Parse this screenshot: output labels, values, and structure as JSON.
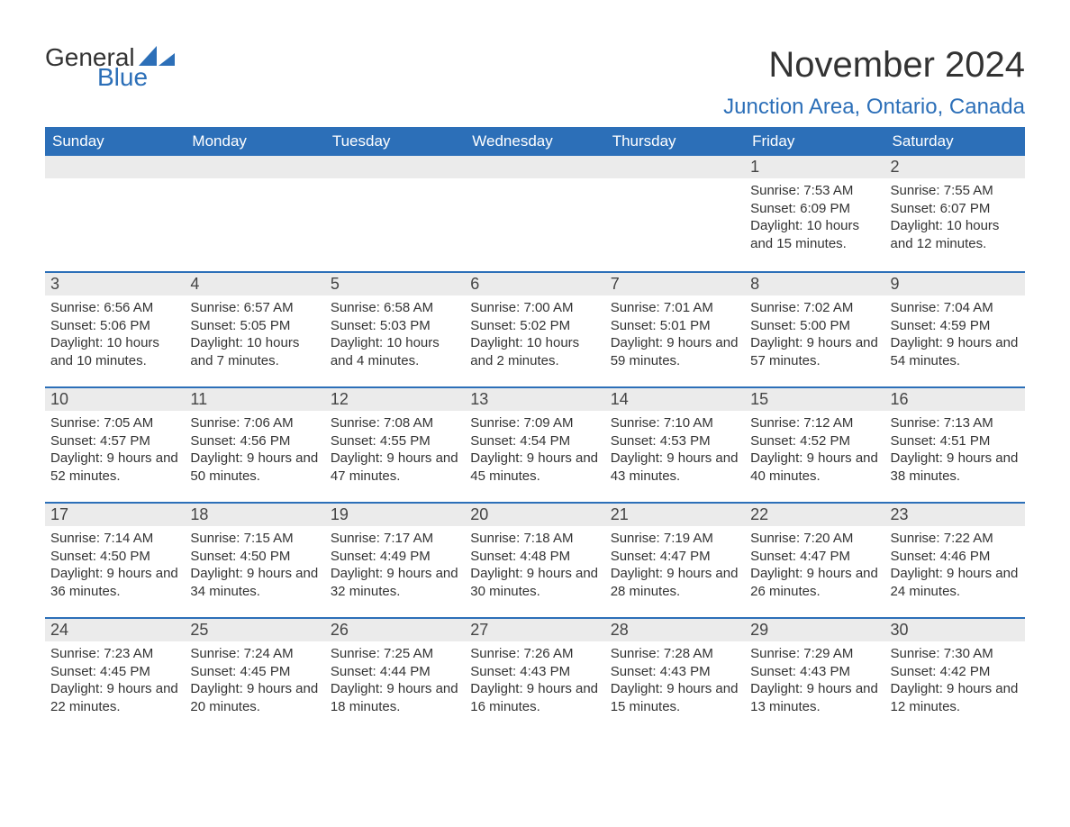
{
  "logo": {
    "text1": "General",
    "text2": "Blue"
  },
  "title": "November 2024",
  "location": "Junction Area, Ontario, Canada",
  "colors": {
    "header_bg": "#2c6fb8",
    "header_text": "#ffffff",
    "daynum_bg": "#ebebeb",
    "row_border": "#2c6fb8",
    "body_text": "#333333",
    "page_bg": "#ffffff"
  },
  "typography": {
    "month_title_fontsize": 40,
    "location_fontsize": 24,
    "weekday_header_fontsize": 17,
    "daynum_fontsize": 18,
    "body_fontsize": 15
  },
  "weekdays": [
    "Sunday",
    "Monday",
    "Tuesday",
    "Wednesday",
    "Thursday",
    "Friday",
    "Saturday"
  ],
  "weeks": [
    [
      null,
      null,
      null,
      null,
      null,
      {
        "day": "1",
        "sunrise": "7:53 AM",
        "sunset": "6:09 PM",
        "daylight": "10 hours and 15 minutes."
      },
      {
        "day": "2",
        "sunrise": "7:55 AM",
        "sunset": "6:07 PM",
        "daylight": "10 hours and 12 minutes."
      }
    ],
    [
      {
        "day": "3",
        "sunrise": "6:56 AM",
        "sunset": "5:06 PM",
        "daylight": "10 hours and 10 minutes."
      },
      {
        "day": "4",
        "sunrise": "6:57 AM",
        "sunset": "5:05 PM",
        "daylight": "10 hours and 7 minutes."
      },
      {
        "day": "5",
        "sunrise": "6:58 AM",
        "sunset": "5:03 PM",
        "daylight": "10 hours and 4 minutes."
      },
      {
        "day": "6",
        "sunrise": "7:00 AM",
        "sunset": "5:02 PM",
        "daylight": "10 hours and 2 minutes."
      },
      {
        "day": "7",
        "sunrise": "7:01 AM",
        "sunset": "5:01 PM",
        "daylight": "9 hours and 59 minutes."
      },
      {
        "day": "8",
        "sunrise": "7:02 AM",
        "sunset": "5:00 PM",
        "daylight": "9 hours and 57 minutes."
      },
      {
        "day": "9",
        "sunrise": "7:04 AM",
        "sunset": "4:59 PM",
        "daylight": "9 hours and 54 minutes."
      }
    ],
    [
      {
        "day": "10",
        "sunrise": "7:05 AM",
        "sunset": "4:57 PM",
        "daylight": "9 hours and 52 minutes."
      },
      {
        "day": "11",
        "sunrise": "7:06 AM",
        "sunset": "4:56 PM",
        "daylight": "9 hours and 50 minutes."
      },
      {
        "day": "12",
        "sunrise": "7:08 AM",
        "sunset": "4:55 PM",
        "daylight": "9 hours and 47 minutes."
      },
      {
        "day": "13",
        "sunrise": "7:09 AM",
        "sunset": "4:54 PM",
        "daylight": "9 hours and 45 minutes."
      },
      {
        "day": "14",
        "sunrise": "7:10 AM",
        "sunset": "4:53 PM",
        "daylight": "9 hours and 43 minutes."
      },
      {
        "day": "15",
        "sunrise": "7:12 AM",
        "sunset": "4:52 PM",
        "daylight": "9 hours and 40 minutes."
      },
      {
        "day": "16",
        "sunrise": "7:13 AM",
        "sunset": "4:51 PM",
        "daylight": "9 hours and 38 minutes."
      }
    ],
    [
      {
        "day": "17",
        "sunrise": "7:14 AM",
        "sunset": "4:50 PM",
        "daylight": "9 hours and 36 minutes."
      },
      {
        "day": "18",
        "sunrise": "7:15 AM",
        "sunset": "4:50 PM",
        "daylight": "9 hours and 34 minutes."
      },
      {
        "day": "19",
        "sunrise": "7:17 AM",
        "sunset": "4:49 PM",
        "daylight": "9 hours and 32 minutes."
      },
      {
        "day": "20",
        "sunrise": "7:18 AM",
        "sunset": "4:48 PM",
        "daylight": "9 hours and 30 minutes."
      },
      {
        "day": "21",
        "sunrise": "7:19 AM",
        "sunset": "4:47 PM",
        "daylight": "9 hours and 28 minutes."
      },
      {
        "day": "22",
        "sunrise": "7:20 AM",
        "sunset": "4:47 PM",
        "daylight": "9 hours and 26 minutes."
      },
      {
        "day": "23",
        "sunrise": "7:22 AM",
        "sunset": "4:46 PM",
        "daylight": "9 hours and 24 minutes."
      }
    ],
    [
      {
        "day": "24",
        "sunrise": "7:23 AM",
        "sunset": "4:45 PM",
        "daylight": "9 hours and 22 minutes."
      },
      {
        "day": "25",
        "sunrise": "7:24 AM",
        "sunset": "4:45 PM",
        "daylight": "9 hours and 20 minutes."
      },
      {
        "day": "26",
        "sunrise": "7:25 AM",
        "sunset": "4:44 PM",
        "daylight": "9 hours and 18 minutes."
      },
      {
        "day": "27",
        "sunrise": "7:26 AM",
        "sunset": "4:43 PM",
        "daylight": "9 hours and 16 minutes."
      },
      {
        "day": "28",
        "sunrise": "7:28 AM",
        "sunset": "4:43 PM",
        "daylight": "9 hours and 15 minutes."
      },
      {
        "day": "29",
        "sunrise": "7:29 AM",
        "sunset": "4:43 PM",
        "daylight": "9 hours and 13 minutes."
      },
      {
        "day": "30",
        "sunrise": "7:30 AM",
        "sunset": "4:42 PM",
        "daylight": "9 hours and 12 minutes."
      }
    ]
  ],
  "labels": {
    "sunrise_prefix": "Sunrise: ",
    "sunset_prefix": "Sunset: ",
    "daylight_prefix": "Daylight: "
  }
}
